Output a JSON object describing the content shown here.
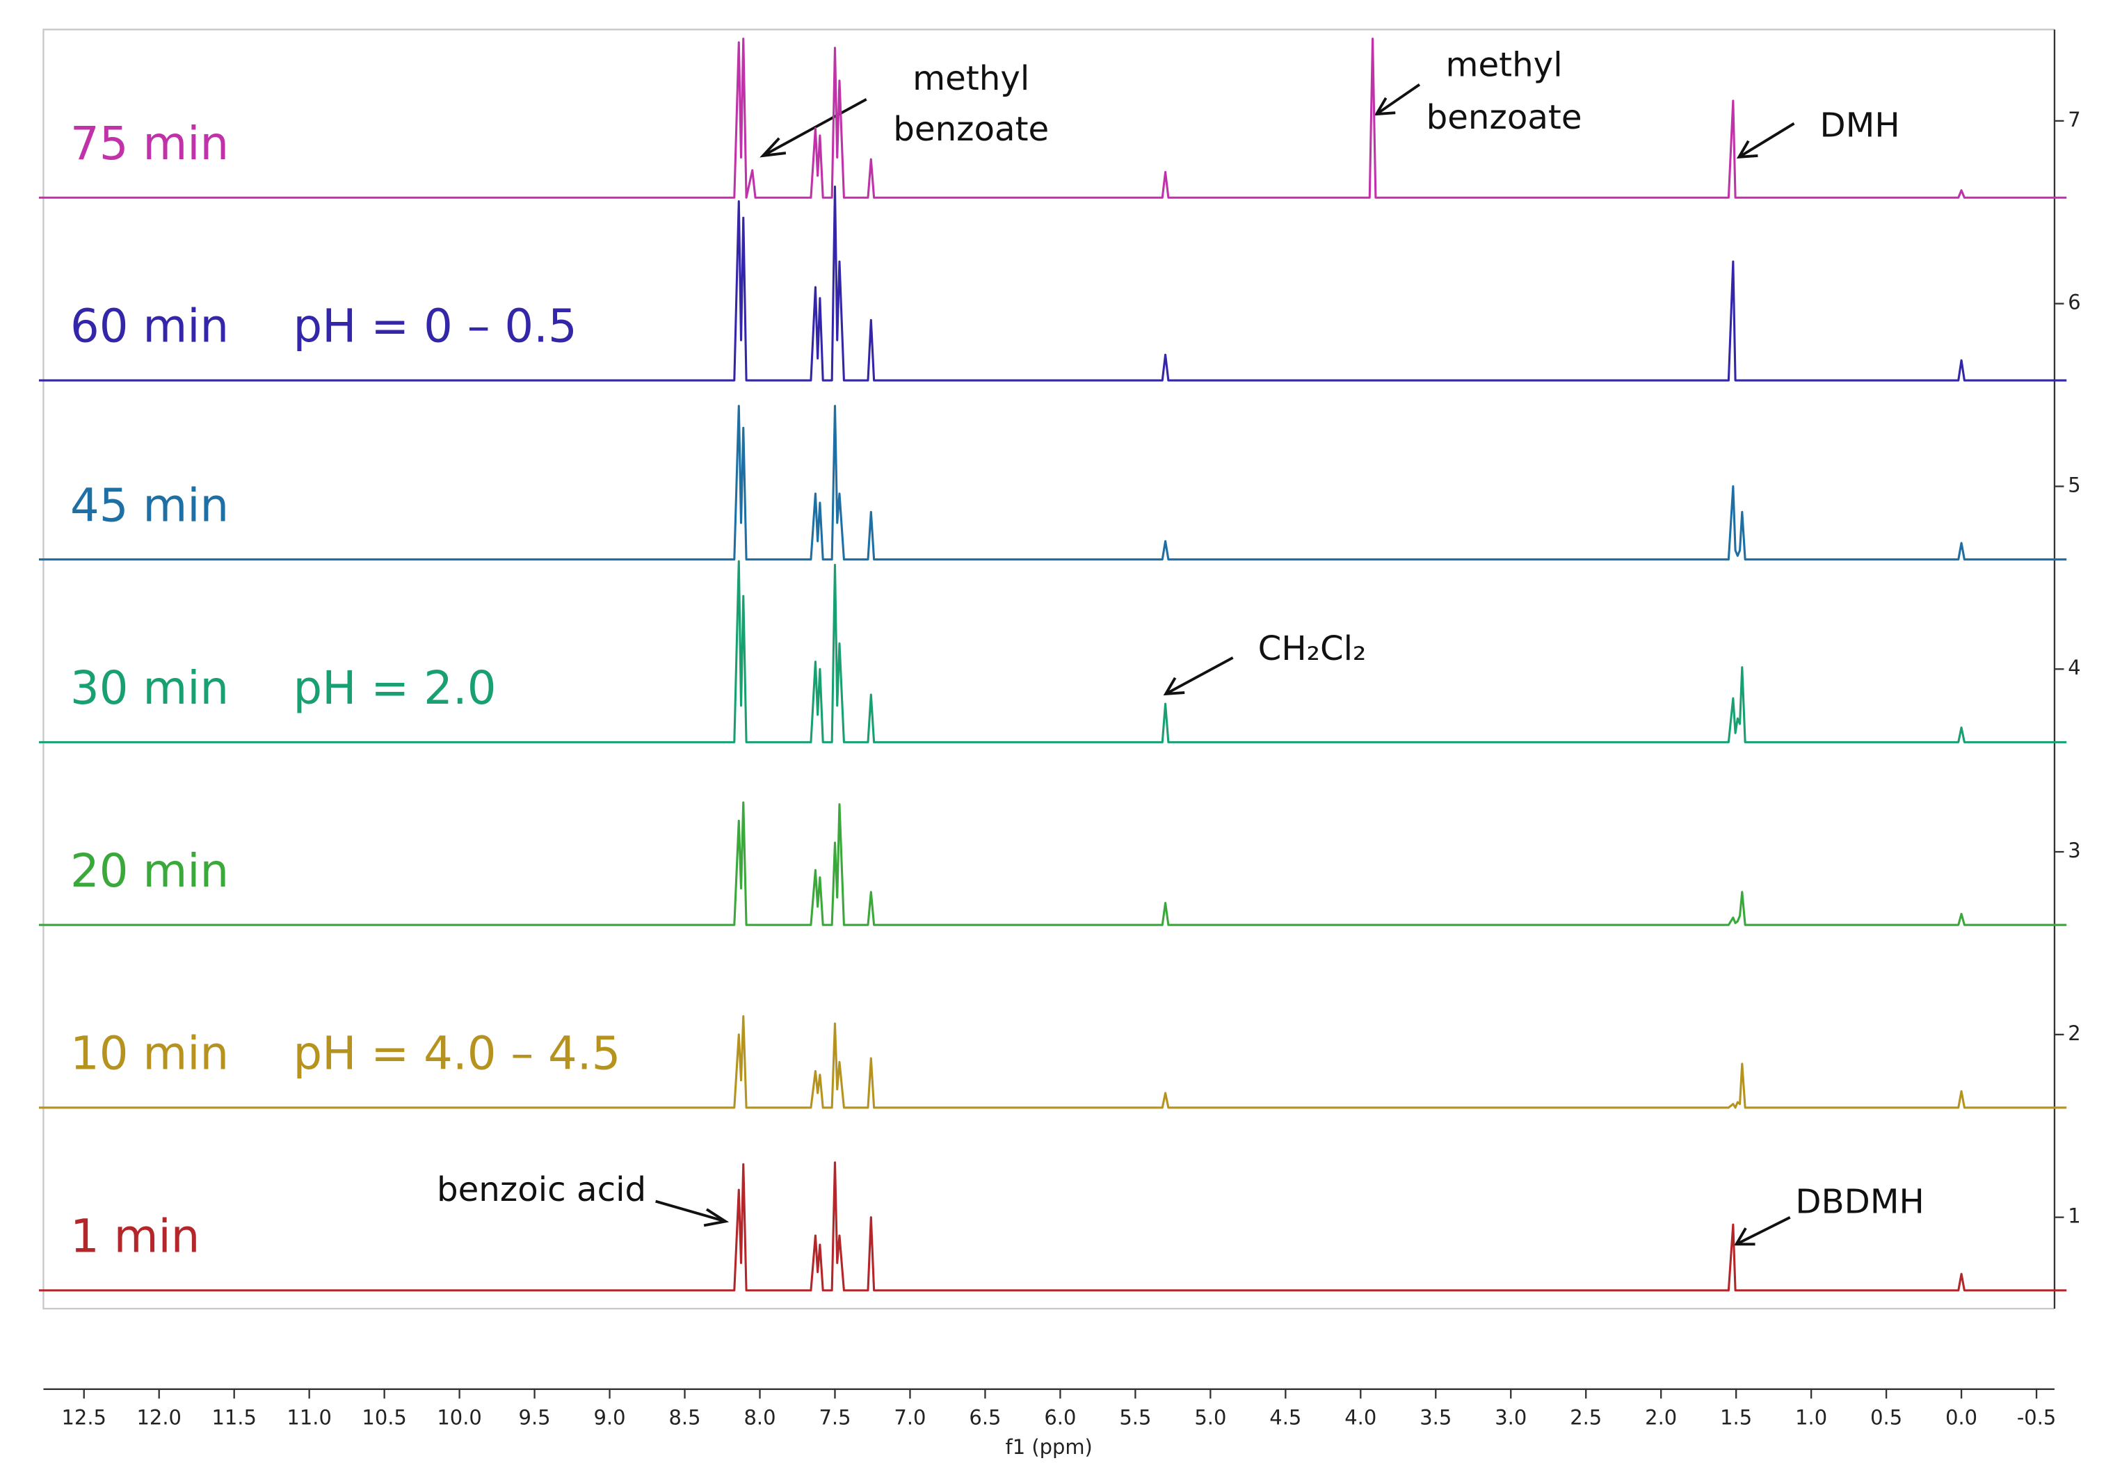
{
  "chart_data": {
    "type": "line",
    "xlabel": "f1 (ppm)",
    "xlim": [
      12.77,
      -0.62
    ],
    "xticks": [
      12.5,
      {
        "value": 12,
        "label": "12.0"
      },
      11.5,
      {
        "value": 11,
        "label": "11.0"
      },
      10.5,
      {
        "value": 10,
        "label": "10.0"
      },
      9.5,
      {
        "value": 9,
        "label": "9.0"
      },
      8.5,
      {
        "value": 8,
        "label": "8.0"
      },
      7.5,
      {
        "value": 7,
        "label": "7.0"
      },
      6.5,
      {
        "value": 6,
        "label": "6.0"
      },
      5.5,
      {
        "value": 5,
        "label": "5.0"
      },
      4.5,
      {
        "value": 4,
        "label": "4.0"
      },
      3.5,
      {
        "value": 3,
        "label": "3.0"
      },
      2.5,
      {
        "value": 2,
        "label": "2.0"
      },
      1.5,
      {
        "value": 1,
        "label": "1.0"
      },
      0.5,
      {
        "value": 0,
        "label": "0.0"
      },
      -0.5
    ],
    "ylim": [
      0.5,
      7.5
    ],
    "yticks": [
      1,
      2,
      3,
      4,
      5,
      6,
      7
    ],
    "x": [
      12.8,
      8.17,
      8.14,
      8.125,
      8.11,
      8.09,
      8.05,
      8.03,
      7.66,
      7.63,
      7.615,
      7.6,
      7.58,
      7.52,
      7.5,
      7.485,
      7.47,
      7.44,
      7.28,
      7.26,
      7.24,
      5.32,
      5.3,
      5.28,
      3.94,
      3.92,
      3.9,
      1.55,
      1.52,
      1.505,
      1.49,
      1.475,
      1.46,
      1.44,
      0.02,
      0.0,
      -0.02,
      -0.7
    ],
    "series": [
      {
        "name": "1 min",
        "color": "#b3262a",
        "values": [
          0.6,
          0.6,
          1.15,
          0.75,
          1.29,
          0.6,
          0.6,
          0.6,
          0.6,
          0.9,
          0.7,
          0.85,
          0.6,
          0.6,
          1.3,
          0.75,
          0.9,
          0.6,
          0.6,
          1.0,
          0.6,
          0.6,
          0.6,
          0.6,
          0.6,
          0.6,
          0.6,
          0.6,
          0.96,
          0.6,
          0.6,
          0.6,
          0.6,
          0.6,
          0.6,
          0.69,
          0.6,
          0.6
        ]
      },
      {
        "name": "10 min",
        "ph": "pH = 4.0 – 4.5",
        "color": "#b5931e",
        "values": [
          1.6,
          1.6,
          2.0,
          1.75,
          2.1,
          1.6,
          1.6,
          1.6,
          1.6,
          1.8,
          1.68,
          1.78,
          1.6,
          1.6,
          2.06,
          1.7,
          1.85,
          1.6,
          1.6,
          1.87,
          1.6,
          1.6,
          1.68,
          1.6,
          1.6,
          1.6,
          1.6,
          1.6,
          1.62,
          1.6,
          1.63,
          1.62,
          1.84,
          1.6,
          1.6,
          1.69,
          1.6,
          1.6
        ]
      },
      {
        "name": "20 min",
        "color": "#3aa83a",
        "values": [
          2.6,
          2.6,
          3.17,
          2.8,
          3.27,
          2.6,
          2.6,
          2.6,
          2.6,
          2.9,
          2.7,
          2.86,
          2.6,
          2.6,
          3.05,
          2.75,
          3.26,
          2.6,
          2.6,
          2.78,
          2.6,
          2.6,
          2.72,
          2.6,
          2.6,
          2.6,
          2.6,
          2.6,
          2.64,
          2.61,
          2.62,
          2.65,
          2.78,
          2.6,
          2.6,
          2.66,
          2.6,
          2.6
        ]
      },
      {
        "name": "30 min",
        "ph": "pH = 2.0",
        "color": "#18a070",
        "values": [
          3.6,
          3.6,
          4.59,
          3.8,
          4.4,
          3.6,
          3.6,
          3.6,
          3.6,
          4.04,
          3.75,
          4.0,
          3.6,
          3.6,
          4.57,
          3.8,
          4.14,
          3.6,
          3.6,
          3.86,
          3.6,
          3.6,
          3.81,
          3.6,
          3.6,
          3.6,
          3.6,
          3.6,
          3.84,
          3.65,
          3.73,
          3.7,
          4.01,
          3.6,
          3.6,
          3.68,
          3.6,
          3.6
        ]
      },
      {
        "name": "45 min",
        "color": "#1e6fa3",
        "values": [
          4.6,
          4.6,
          5.44,
          4.8,
          5.32,
          4.6,
          4.6,
          4.6,
          4.6,
          4.96,
          4.7,
          4.91,
          4.6,
          4.6,
          5.44,
          4.8,
          4.96,
          4.6,
          4.6,
          4.86,
          4.6,
          4.6,
          4.7,
          4.6,
          4.6,
          4.6,
          4.6,
          4.6,
          5.0,
          4.65,
          4.62,
          4.65,
          4.86,
          4.6,
          4.6,
          4.69,
          4.6,
          4.6
        ]
      },
      {
        "name": "60 min",
        "ph": "pH = 0 – 0.5",
        "color": "#3326a8",
        "values": [
          5.58,
          5.58,
          6.56,
          5.8,
          6.47,
          5.58,
          5.58,
          5.58,
          5.58,
          6.09,
          5.7,
          6.03,
          5.58,
          5.58,
          6.64,
          5.8,
          6.23,
          5.58,
          5.58,
          5.91,
          5.58,
          5.58,
          5.72,
          5.58,
          5.58,
          5.58,
          5.58,
          5.58,
          6.23,
          5.58,
          5.58,
          5.58,
          5.58,
          5.58,
          5.58,
          5.69,
          5.58,
          5.58
        ]
      },
      {
        "name": "75 min",
        "color": "#c032a8",
        "values": [
          6.58,
          6.58,
          7.43,
          6.8,
          7.45,
          6.58,
          6.73,
          6.58,
          6.58,
          6.96,
          6.7,
          6.92,
          6.58,
          6.58,
          7.4,
          6.8,
          7.22,
          6.58,
          6.58,
          6.79,
          6.58,
          6.58,
          6.72,
          6.58,
          6.58,
          7.45,
          6.58,
          6.58,
          7.11,
          6.58,
          6.58,
          6.58,
          6.58,
          6.58,
          6.58,
          6.62,
          6.58,
          6.58
        ]
      }
    ],
    "annotations": [
      {
        "lines": [
          "methyl",
          "benzoate"
        ]
      },
      {
        "lines": [
          "methyl",
          "benzoate"
        ]
      },
      {
        "text": "DMH"
      },
      {
        "text": "CH₂Cl₂"
      },
      {
        "text": "benzoic acid"
      },
      {
        "text": "DBDMH"
      }
    ]
  }
}
